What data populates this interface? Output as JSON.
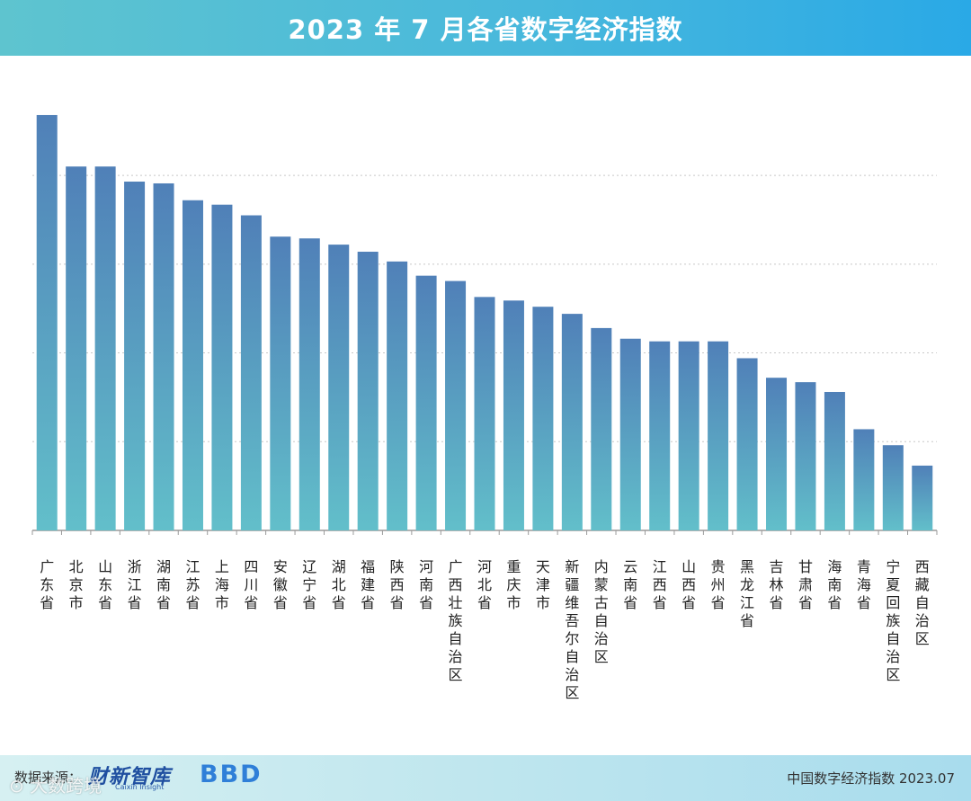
{
  "header": {
    "title": "2023 年 7 月各省数字经济指数"
  },
  "footer": {
    "source_label": "数据来源：",
    "brand_name": "财新智库",
    "brand_sub": "Caixin Insight",
    "bbd_logo": "BBD",
    "watermark": "⊙ 大数跨境",
    "footnote": "中国数字经济指数 2023.07"
  },
  "colors": {
    "bar_top": "#5080b8",
    "bar_bottom": "#62bfca",
    "grid": "#c8c8c8",
    "axis": "#9a9a9a"
  },
  "chart_data": {
    "type": "bar",
    "title": "2023 年 7 月各省数字经济指数",
    "xlabel": "",
    "ylabel": "",
    "ylim": [
      0,
      4.7
    ],
    "grid": true,
    "yticks": [
      1,
      2,
      3,
      4
    ],
    "show_y_tick_labels": false,
    "categories": [
      "广东省",
      "北京市",
      "山东省",
      "浙江省",
      "湖南省",
      "江苏省",
      "上海市",
      "四川省",
      "安徽省",
      "辽宁省",
      "湖北省",
      "福建省",
      "陕西省",
      "河南省",
      "广西壮族自治区",
      "河北省",
      "重庆市",
      "天津市",
      "新疆维吾尔自治区",
      "内蒙古自治区",
      "云南省",
      "江西省",
      "山西省",
      "贵州省",
      "黑龙江省",
      "吉林省",
      "甘肃省",
      "海南省",
      "青海省",
      "宁夏回族自治区",
      "西藏自治区"
    ],
    "values": [
      4.68,
      4.1,
      4.1,
      3.93,
      3.91,
      3.72,
      3.67,
      3.55,
      3.31,
      3.29,
      3.22,
      3.14,
      3.03,
      2.87,
      2.81,
      2.63,
      2.59,
      2.52,
      2.44,
      2.28,
      2.16,
      2.13,
      2.13,
      2.13,
      1.94,
      1.72,
      1.67,
      1.56,
      1.14,
      0.96,
      0.73
    ]
  }
}
